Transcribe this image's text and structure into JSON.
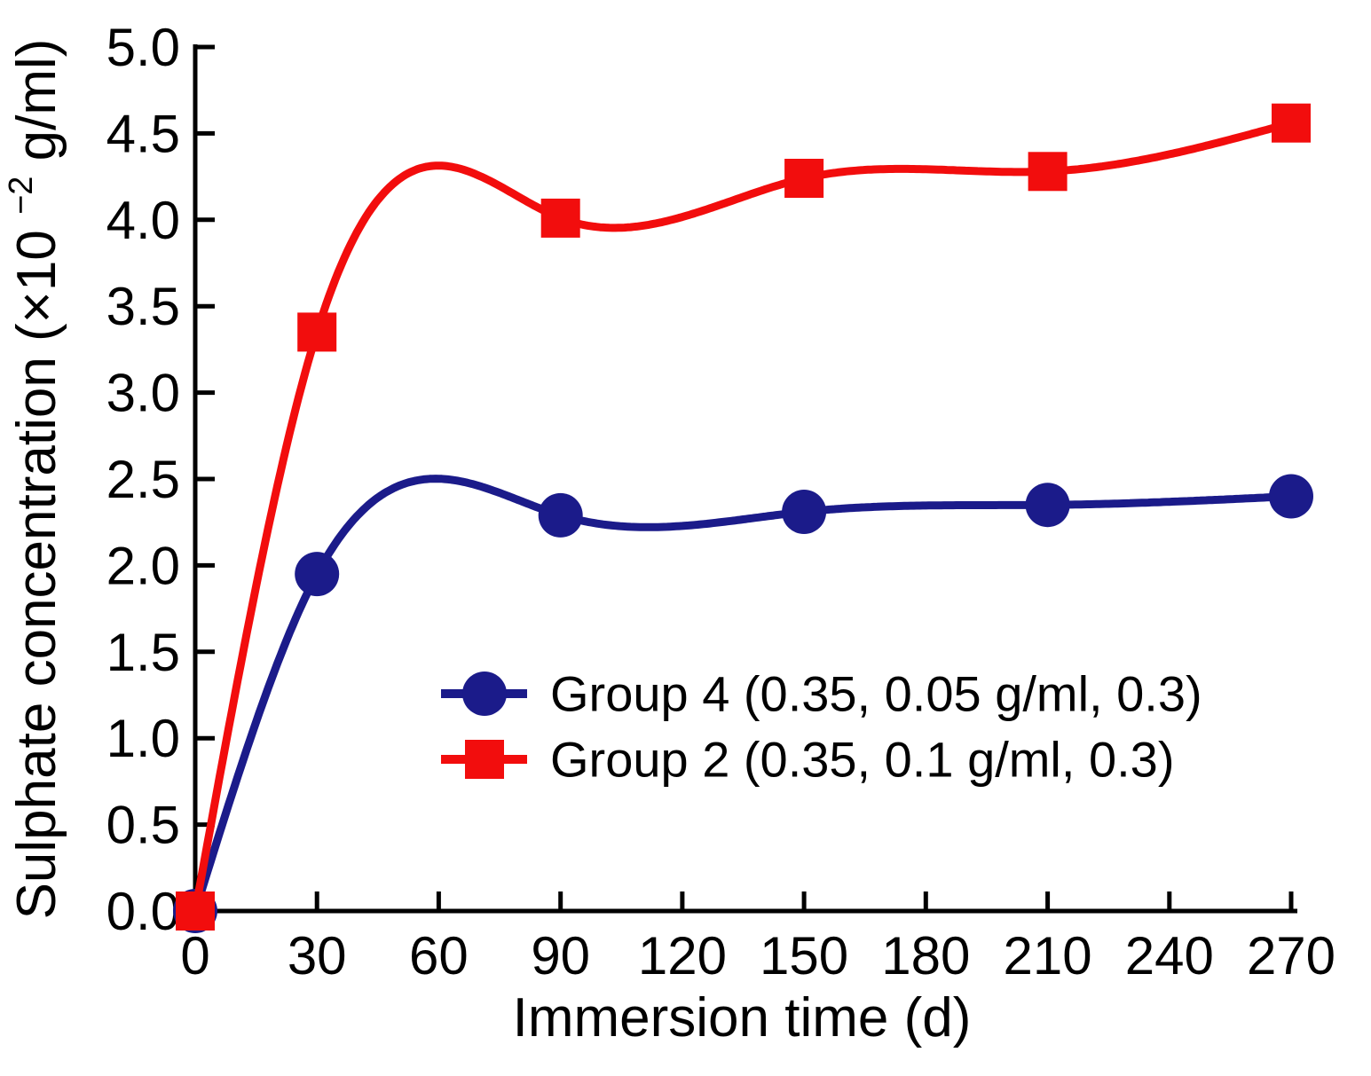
{
  "figure": {
    "background": "#ffffff",
    "axis_color": "#000000"
  },
  "axes": {
    "x_title": "Immersion time (d)",
    "y_title_main": "Sulphate concentration (×10",
    "y_title_super": "−2",
    "y_title_unit": " g/ml)",
    "x_range": [
      0,
      270
    ],
    "y_range": [
      0.0,
      5.0
    ],
    "x_ticks": [
      {
        "value": 0,
        "label": "0"
      },
      {
        "value": 30,
        "label": "30"
      },
      {
        "value": 60,
        "label": "60"
      },
      {
        "value": 90,
        "label": "90"
      },
      {
        "value": 120,
        "label": "120"
      },
      {
        "value": 150,
        "label": "150"
      },
      {
        "value": 180,
        "label": "180"
      },
      {
        "value": 210,
        "label": "210"
      },
      {
        "value": 240,
        "label": "240"
      },
      {
        "value": 270,
        "label": "270"
      }
    ],
    "y_ticks": [
      {
        "value": 0.0,
        "label": "0.0"
      },
      {
        "value": 0.5,
        "label": "0.5"
      },
      {
        "value": 1.0,
        "label": "1.0"
      },
      {
        "value": 1.5,
        "label": "1.5"
      },
      {
        "value": 2.0,
        "label": "2.0"
      },
      {
        "value": 2.5,
        "label": "2.5"
      },
      {
        "value": 3.0,
        "label": "3.0"
      },
      {
        "value": 3.5,
        "label": "3.5"
      },
      {
        "value": 4.0,
        "label": "4.0"
      },
      {
        "value": 4.5,
        "label": "4.5"
      },
      {
        "value": 5.0,
        "label": "5.0"
      }
    ]
  },
  "legend": {
    "entries": [
      {
        "label": "Group 4 (0.35, 0.05 g/ml, 0.3)",
        "color": "#1b1b8a",
        "marker": "circle"
      },
      {
        "label": "Group 2 (0.35, 0.1 g/ml, 0.3)",
        "color": "#f20d0d",
        "marker": "square"
      }
    ],
    "position": "center"
  },
  "chart_data": {
    "type": "line",
    "title": "",
    "xlabel": "Immersion time (d)",
    "ylabel": "Sulphate concentration (×10−2 g/ml)",
    "xlim": [
      0,
      270
    ],
    "ylim": [
      0.0,
      5.0
    ],
    "grid": false,
    "curve_style": "natural-cubic-spline",
    "x": [
      0,
      30,
      90,
      150,
      210,
      270
    ],
    "series": [
      {
        "name": "Group 4 (0.35, 0.05 g/ml, 0.3)",
        "marker": "circle",
        "color": "#1b1b8a",
        "values": [
          0.0,
          1.95,
          2.29,
          2.31,
          2.35,
          2.4
        ]
      },
      {
        "name": "Group 2 (0.35, 0.1 g/ml, 0.3)",
        "marker": "square",
        "color": "#f20d0d",
        "values": [
          0.0,
          3.35,
          4.01,
          4.24,
          4.28,
          4.56
        ]
      }
    ]
  }
}
